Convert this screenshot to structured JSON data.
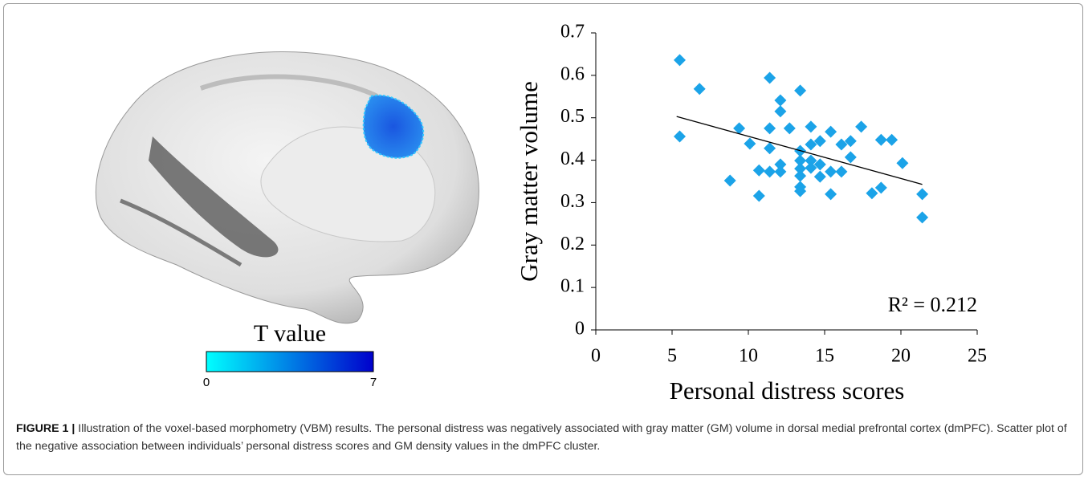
{
  "chart_data": {
    "type": "scatter",
    "xlabel": "Personal distress scores",
    "ylabel": "Gray matter volume",
    "x": [
      5.5,
      5.5,
      6.8,
      8.8,
      9.4,
      10.1,
      10.7,
      10.7,
      11.4,
      11.4,
      11.4,
      11.4,
      12.1,
      12.1,
      12.1,
      12.1,
      12.7,
      13.4,
      13.4,
      13.4,
      13.4,
      13.4,
      13.4,
      13.4,
      14.1,
      14.1,
      14.1,
      14.1,
      14.7,
      14.7,
      14.7,
      15.4,
      15.4,
      15.4,
      16.1,
      16.1,
      16.7,
      16.7,
      17.4,
      18.1,
      18.7,
      18.7,
      19.4,
      20.1,
      21.4,
      21.4
    ],
    "values": [
      0.636,
      0.456,
      0.568,
      0.352,
      0.475,
      0.439,
      0.316,
      0.376,
      0.594,
      0.475,
      0.428,
      0.373,
      0.541,
      0.515,
      0.39,
      0.373,
      0.475,
      0.564,
      0.422,
      0.399,
      0.38,
      0.363,
      0.337,
      0.327,
      0.479,
      0.437,
      0.399,
      0.382,
      0.445,
      0.39,
      0.361,
      0.467,
      0.373,
      0.32,
      0.437,
      0.373,
      0.445,
      0.407,
      0.479,
      0.322,
      0.335,
      0.448,
      0.448,
      0.393,
      0.32,
      0.265
    ],
    "color": "#1ba3e8",
    "trendline": {
      "x": [
        5.3,
        21.4
      ],
      "values": [
        0.503,
        0.343
      ],
      "color": "#000000"
    },
    "annotation": "R² = 0.212",
    "xlim": [
      0,
      25
    ],
    "xticks": [
      0,
      5,
      10,
      15,
      20,
      25
    ],
    "ylim": [
      0,
      0.7
    ],
    "yticks": [
      0,
      0.1,
      0.2,
      0.3,
      0.4,
      0.5,
      0.6,
      0.7
    ],
    "grid": false
  },
  "colorbar": {
    "label": "T value",
    "range": [
      0,
      7
    ],
    "ticks": [
      0,
      7
    ],
    "colors": [
      "#00ffff",
      "#0000cc"
    ]
  },
  "caption": {
    "label": "FIGURE 1 |",
    "text": "Illustration of the voxel-based morphometry (VBM) results. The personal distress was negatively associated with gray matter (GM) volume in dorsal medial prefrontal cortex (dmPFC). Scatter plot of the negative association between individuals’ personal distress scores and GM density values in the dmPFC cluster."
  }
}
